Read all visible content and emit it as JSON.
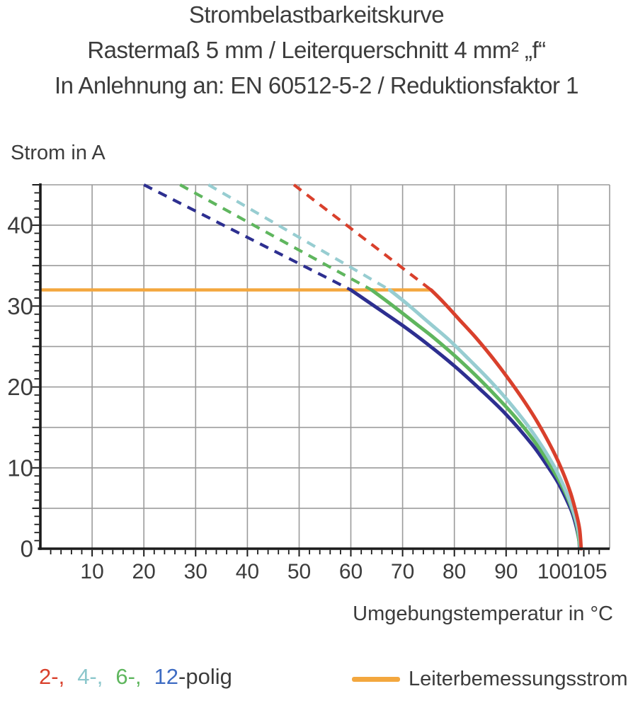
{
  "title": {
    "line1": "Strombelastbarkeitskurve",
    "line2": "Rastermaß 5 mm / Leiterquerschnitt 4 mm² „f“",
    "line3": "In Anlehnung an: EN 60512-5-2 / Reduktionsfaktor 1"
  },
  "chart_data": {
    "type": "line",
    "title": "Strombelastbarkeitskurve",
    "xlabel": "Umgebungstemperatur in °C",
    "ylabel": "Strom in A",
    "xlim": [
      0,
      110
    ],
    "ylim": [
      0,
      45
    ],
    "x_tick_labels": [
      10,
      20,
      30,
      40,
      50,
      60,
      70,
      80,
      90,
      100,
      105
    ],
    "y_tick_labels": [
      0,
      10,
      20,
      30,
      40
    ],
    "x_gridline_step": 10,
    "y_gridline_step": 5,
    "x_minor_tick_step": 2,
    "y_minor_tick_step": 1,
    "grid": true,
    "legend_position": "bottom",
    "rated_current_A": 32,
    "series": [
      {
        "name": "Leiterbemessungsstrom",
        "color": "#f3a73e",
        "style": "solid",
        "solid_points": [
          [
            0,
            32
          ],
          [
            75.5,
            32
          ]
        ]
      },
      {
        "name": "12-polig",
        "color": "#2d2f90",
        "style": "dashed-then-solid",
        "dashed_points": [
          [
            20,
            45
          ],
          [
            60,
            32
          ]
        ],
        "solid_points": [
          [
            60,
            32
          ],
          [
            65,
            29.8
          ],
          [
            70,
            27.6
          ],
          [
            75,
            25.2
          ],
          [
            80,
            22.6
          ],
          [
            85,
            19.7
          ],
          [
            90,
            16.6
          ],
          [
            95,
            12.9
          ],
          [
            98,
            10.2
          ],
          [
            100,
            8.2
          ],
          [
            102,
            5.6
          ],
          [
            103,
            4.0
          ],
          [
            104,
            1.4
          ],
          [
            104.2,
            0
          ]
        ]
      },
      {
        "name": "6-polig",
        "color": "#5fb65e",
        "style": "dashed-then-solid",
        "dashed_points": [
          [
            27,
            45
          ],
          [
            64,
            32
          ]
        ],
        "solid_points": [
          [
            64,
            32
          ],
          [
            68,
            30.1
          ],
          [
            72,
            28.1
          ],
          [
            76,
            26.1
          ],
          [
            80,
            23.9
          ],
          [
            84,
            21.5
          ],
          [
            88,
            18.9
          ],
          [
            92,
            16.1
          ],
          [
            96,
            12.8
          ],
          [
            100,
            8.7
          ],
          [
            102,
            6.1
          ],
          [
            103.5,
            3.3
          ],
          [
            104.3,
            0
          ]
        ]
      },
      {
        "name": "4-polig",
        "color": "#97cdd1",
        "style": "dashed-then-solid",
        "dashed_points": [
          [
            32.5,
            45
          ],
          [
            67.5,
            32
          ]
        ],
        "solid_points": [
          [
            67.5,
            32
          ],
          [
            71,
            30.2
          ],
          [
            75,
            28.0
          ],
          [
            79,
            25.8
          ],
          [
            83,
            23.3
          ],
          [
            87,
            20.7
          ],
          [
            91,
            17.8
          ],
          [
            95,
            14.5
          ],
          [
            99,
            10.5
          ],
          [
            101.5,
            7.2
          ],
          [
            103,
            4.6
          ],
          [
            104,
            2.1
          ],
          [
            104.35,
            0
          ]
        ]
      },
      {
        "name": "2-polig",
        "color": "#d9402c",
        "style": "dashed-then-solid",
        "dashed_points": [
          [
            49,
            45
          ],
          [
            75.5,
            32
          ]
        ],
        "solid_points": [
          [
            75.5,
            32
          ],
          [
            78,
            30.4
          ],
          [
            81,
            28.3
          ],
          [
            84,
            26.2
          ],
          [
            87,
            23.9
          ],
          [
            90,
            21.4
          ],
          [
            93,
            18.7
          ],
          [
            96,
            15.7
          ],
          [
            99,
            12.2
          ],
          [
            101,
            9.4
          ],
          [
            102.5,
            6.8
          ],
          [
            103.5,
            4.5
          ],
          [
            104.2,
            2.4
          ],
          [
            104.5,
            0
          ]
        ]
      }
    ]
  },
  "legend": {
    "poles": {
      "items": [
        {
          "label": "2-,",
          "color": "#d9402c"
        },
        {
          "label": "4-,",
          "color": "#8cc7cc"
        },
        {
          "label": "6-,",
          "color": "#5fb65e"
        },
        {
          "label": "12",
          "color": "#3e6cc3"
        }
      ],
      "suffix": "-polig"
    },
    "rated": {
      "label": "Leiterbemessungsstrom",
      "color": "#f3a73e"
    }
  },
  "colors": {
    "text": "#3c3c3c",
    "grid": "#9b9b9b",
    "axis": "#1b1b1b"
  }
}
